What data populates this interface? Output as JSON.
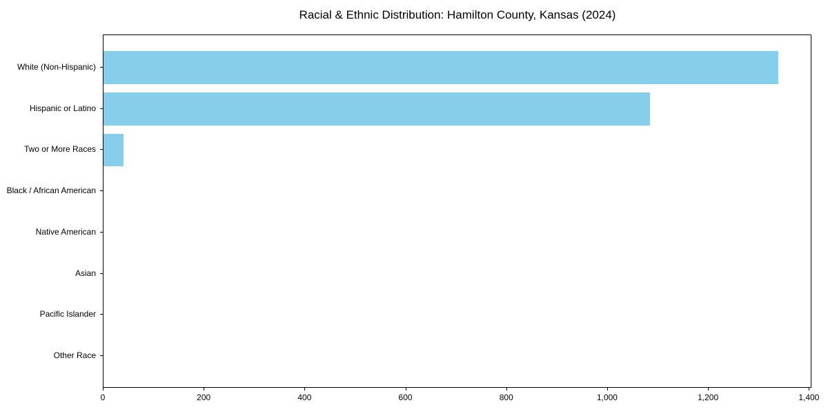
{
  "chart_data": {
    "type": "bar",
    "orientation": "horizontal",
    "title": "Racial & Ethnic Distribution: Hamilton County, Kansas (2024)",
    "categories": [
      "White (Non-Hispanic)",
      "Hispanic or Latino",
      "Two or More Races",
      "Black / African American",
      "Native American",
      "Asian",
      "Pacific Islander",
      "Other Race"
    ],
    "values": [
      1340,
      1085,
      40,
      0,
      0,
      0,
      0,
      0
    ],
    "xlabel": "",
    "ylabel": "",
    "xlim": [
      0,
      1405
    ],
    "xticks": [
      0,
      200,
      400,
      600,
      800,
      1000,
      1200,
      1400
    ],
    "xtick_labels": [
      "0",
      "200",
      "400",
      "600",
      "800",
      "1,000",
      "1,200",
      "1,400"
    ],
    "bar_color": "#87CEEB",
    "grid": false,
    "legend_position": "none"
  }
}
